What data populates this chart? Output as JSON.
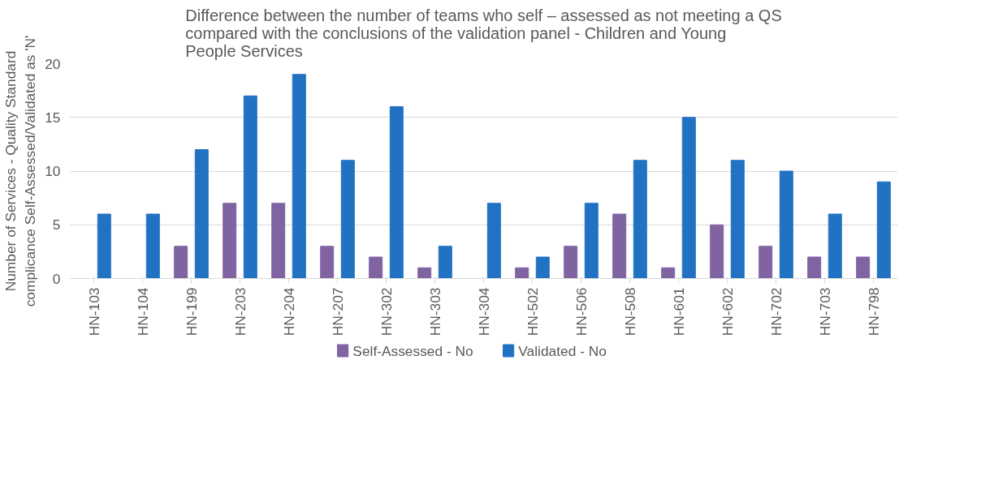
{
  "chart_data": {
    "type": "bar",
    "title": "Difference between the number of teams who self – assessed as not meeting a QS compared with the conclusions of the validation panel - Children and Young People Services",
    "ylabel": "Number of Services - Quality Standard complicance Self-Assessed/Validated as 'N'",
    "categories": [
      "HN-103",
      "HN-104",
      "HN-199",
      "HN-203",
      "HN-204",
      "HN-207",
      "HN-302",
      "HN-303",
      "HN-304",
      "HN-502",
      "HN-506",
      "HN-508",
      "HN-601",
      "HN-602",
      "HN-702",
      "HN-703",
      "HN-798"
    ],
    "series": [
      {
        "name": "Self-Assessed - No",
        "color": "#8064a2",
        "values": [
          0,
          0,
          3,
          7,
          7,
          3,
          2,
          1,
          0,
          1,
          3,
          6,
          1,
          5,
          3,
          2,
          2
        ]
      },
      {
        "name": "Validated - No",
        "color": "#2272c3",
        "values": [
          6,
          6,
          12,
          17,
          19,
          11,
          16,
          3,
          7,
          2,
          7,
          11,
          15,
          11,
          10,
          6,
          9
        ]
      }
    ],
    "ylim": [
      0,
      20
    ],
    "yticks": [
      0,
      5,
      10,
      15,
      20
    ],
    "grid": "y",
    "legend": "bottom"
  }
}
